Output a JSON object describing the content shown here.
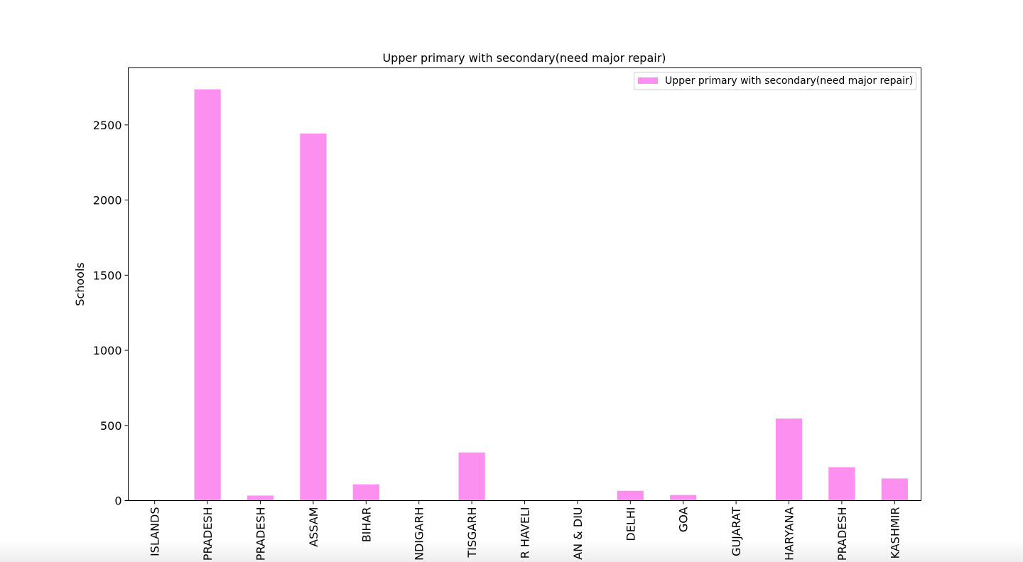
{
  "chart_data": {
    "type": "bar",
    "title": "Upper primary with secondary(need major repair)",
    "xlabel": "",
    "ylabel": "Schools",
    "ylim": [
      0,
      2880
    ],
    "yticks": [
      0,
      500,
      1000,
      1500,
      2000,
      2500
    ],
    "categories": [
      "ISLANDS",
      "PRADESH",
      "PRADESH",
      "ASSAM",
      "BIHAR",
      "NDIGARH",
      "TISGARH",
      "R HAVELI",
      "AN & DIU",
      "DELHI",
      "GOA",
      "GUJARAT",
      "HARYANA",
      "PRADESH",
      "KASHMIR"
    ],
    "series": [
      {
        "name": "Upper primary with secondary(need major repair)",
        "color": "#fc8ff0",
        "values": [
          0,
          2737,
          33,
          2443,
          108,
          0,
          320,
          0,
          0,
          65,
          37,
          0,
          546,
          222,
          147
        ]
      }
    ],
    "legend_position": "top-right",
    "grid": false
  }
}
